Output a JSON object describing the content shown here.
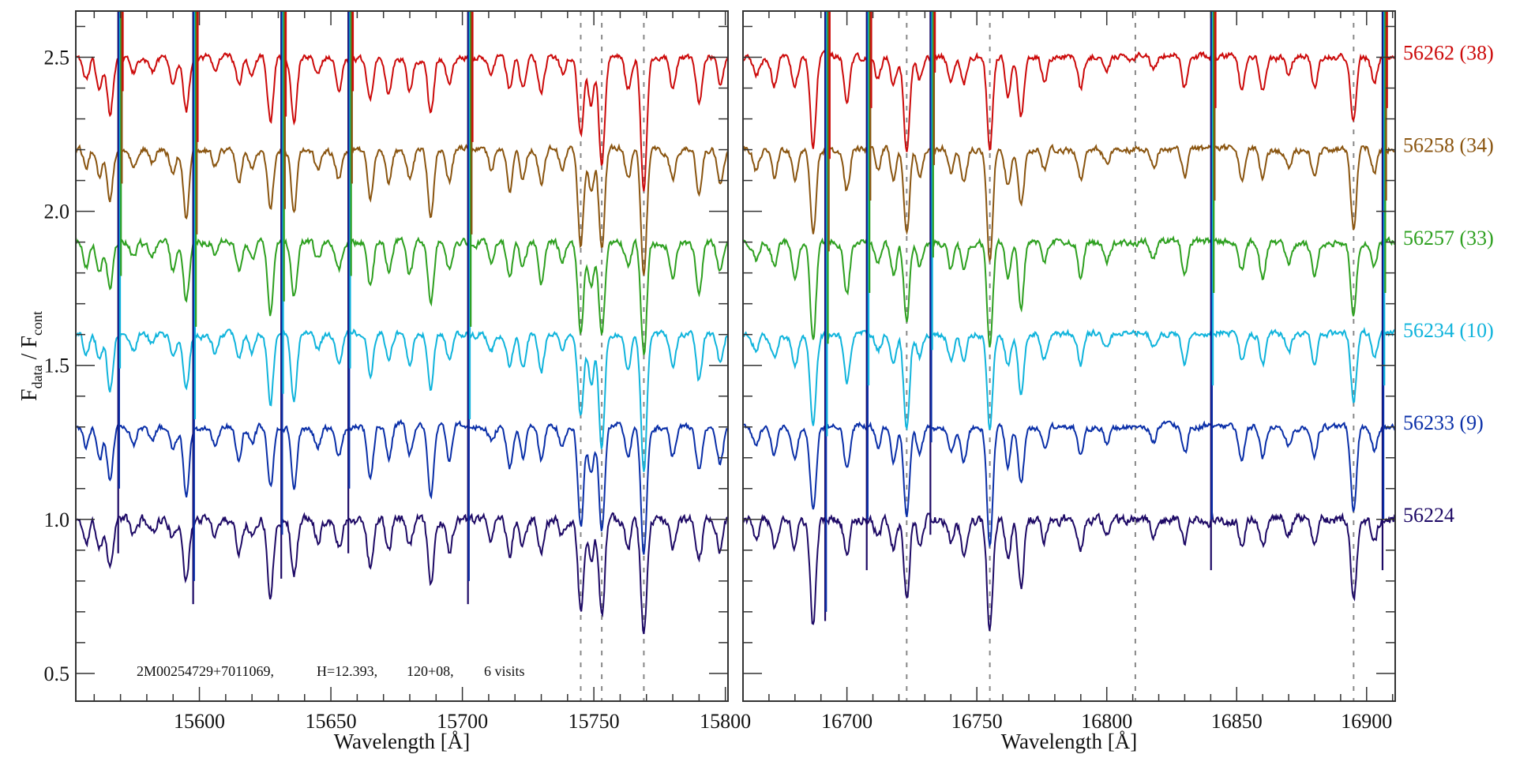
{
  "chart_data": {
    "type": "line",
    "title": "",
    "ylabel": {
      "main": "F",
      "sub1": "data",
      "mid": " / F",
      "sub2": "cont"
    },
    "xlabel": "Wavelength [Å]",
    "ylim": [
      0.41,
      2.65
    ],
    "yticks": [
      0.5,
      1.0,
      1.5,
      2.0,
      2.5
    ],
    "ytick_labels": [
      "0.5",
      "1.0",
      "1.5",
      "2.0",
      "2.5"
    ],
    "grid": false,
    "panels": [
      {
        "xlim": [
          15553,
          15801
        ],
        "xticks": [
          15600,
          15650,
          15700,
          15750,
          15800
        ],
        "xtick_labels": [
          "15600",
          "15650",
          "15700",
          "15750",
          "15800"
        ],
        "dashed_lines": [
          15745,
          15753,
          15769
        ],
        "absorption_lines": [
          [
            15557,
            0.07
          ],
          [
            15562,
            0.1
          ],
          [
            15566,
            0.17
          ],
          [
            15575,
            0.05
          ],
          [
            15582,
            0.04
          ],
          [
            15590,
            0.08
          ],
          [
            15595,
            0.2
          ],
          [
            15606,
            0.05
          ],
          [
            15615,
            0.1
          ],
          [
            15620,
            0.06
          ],
          [
            15627,
            0.22
          ],
          [
            15636,
            0.2
          ],
          [
            15645,
            0.06
          ],
          [
            15653,
            0.1
          ],
          [
            15665,
            0.15
          ],
          [
            15672,
            0.1
          ],
          [
            15680,
            0.1
          ],
          [
            15688,
            0.2
          ],
          [
            15695,
            0.1
          ],
          [
            15711,
            0.06
          ],
          [
            15718,
            0.12
          ],
          [
            15723,
            0.1
          ],
          [
            15730,
            0.12
          ],
          [
            15738,
            0.06
          ],
          [
            15745,
            0.3
          ],
          [
            15749,
            0.15
          ],
          [
            15753,
            0.35
          ],
          [
            15763,
            0.1
          ],
          [
            15769,
            0.4
          ],
          [
            15780,
            0.1
          ],
          [
            15790,
            0.15
          ],
          [
            15798,
            0.1
          ]
        ],
        "spikes": [
          [
            15570,
            -0.2
          ],
          [
            15598.5,
            -0.5
          ],
          [
            15632,
            -0.35
          ],
          [
            15657.5,
            -0.2
          ],
          [
            15703,
            -0.5
          ]
        ]
      },
      {
        "xlim": [
          16660,
          16911
        ],
        "xticks": [
          16700,
          16750,
          16800,
          16850,
          16900
        ],
        "xtick_labels": [
          "16700",
          "16750",
          "16800",
          "16850",
          "16900"
        ],
        "dashed_lines": [
          16723,
          16755,
          16811,
          16895
        ],
        "absorption_lines": [
          [
            16665,
            0.06
          ],
          [
            16672,
            0.08
          ],
          [
            16680,
            0.1
          ],
          [
            16687,
            0.3
          ],
          [
            16700,
            0.15
          ],
          [
            16712,
            0.06
          ],
          [
            16718,
            0.1
          ],
          [
            16723,
            0.3
          ],
          [
            16728,
            0.08
          ],
          [
            16740,
            0.08
          ],
          [
            16745,
            0.1
          ],
          [
            16755,
            0.35
          ],
          [
            16762,
            0.12
          ],
          [
            16767,
            0.2
          ],
          [
            16776,
            0.07
          ],
          [
            16790,
            0.1
          ],
          [
            16800,
            0.05
          ],
          [
            16818,
            0.05
          ],
          [
            16830,
            0.1
          ],
          [
            16852,
            0.1
          ],
          [
            16860,
            0.1
          ],
          [
            16870,
            0.06
          ],
          [
            16880,
            0.1
          ],
          [
            16895,
            0.25
          ],
          [
            16903,
            0.08
          ]
        ],
        "spikes": [
          [
            16692.5,
            -0.6
          ],
          [
            16708.5,
            -0.3
          ],
          [
            16733,
            0.5
          ],
          [
            16841,
            -0.3
          ],
          [
            16907,
            -0.3
          ]
        ]
      }
    ],
    "series": [
      {
        "name": "56224",
        "label": "56224",
        "offset": 0.0,
        "noise": 0.028,
        "color": "#1e0a66",
        "seed": 11
      },
      {
        "name": "56233",
        "label": "56233 (9)",
        "offset": 0.3,
        "noise": 0.018,
        "color": "#0a2fa8",
        "seed": 23
      },
      {
        "name": "56234",
        "label": "56234 (10)",
        "offset": 0.6,
        "noise": 0.018,
        "color": "#10b4dc",
        "seed": 37
      },
      {
        "name": "56257",
        "label": "56257 (33)",
        "offset": 0.9,
        "noise": 0.02,
        "color": "#2ea020",
        "seed": 41
      },
      {
        "name": "56258",
        "label": "56258 (34)",
        "offset": 1.2,
        "noise": 0.018,
        "color": "#8a5510",
        "seed": 53
      },
      {
        "name": "56262",
        "label": "56262 (38)",
        "offset": 1.5,
        "noise": 0.018,
        "color": "#cc0a0a",
        "seed": 67
      }
    ],
    "annotation": {
      "star": "2M00254729+7011069,",
      "hmag": "H=12.393,",
      "field": "120+08,",
      "visits": "6 visits"
    }
  }
}
